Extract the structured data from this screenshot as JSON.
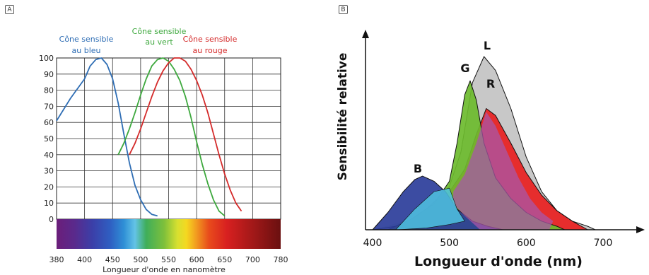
{
  "panel_a_letter": "A",
  "panel_b_letter": "B",
  "chart_data": [
    {
      "type": "line",
      "panel": "A",
      "xlabel": "Longueur d'onde en nanomètre",
      "ylabel": "",
      "x_ticks": [
        380,
        400,
        450,
        500,
        550,
        600,
        650,
        700,
        780
      ],
      "y_ticks": [
        0,
        10,
        20,
        30,
        40,
        50,
        60,
        70,
        80,
        90,
        100
      ],
      "xlim": [
        380,
        780
      ],
      "ylim": [
        0,
        100
      ],
      "grid": true,
      "spectrum_bar": true,
      "series": [
        {
          "name": "Cône sensible au bleu",
          "name_lines": [
            "Cône sensible",
            "au bleu"
          ],
          "color": "#2e6db4",
          "points": [
            [
              380,
              61
            ],
            [
              390,
              75
            ],
            [
              400,
              87
            ],
            [
              410,
              95
            ],
            [
              420,
              99
            ],
            [
              430,
              100
            ],
            [
              440,
              96
            ],
            [
              450,
              87
            ],
            [
              460,
              72
            ],
            [
              470,
              53
            ],
            [
              480,
              35
            ],
            [
              490,
              21
            ],
            [
              500,
              12
            ],
            [
              510,
              6
            ],
            [
              520,
              3
            ],
            [
              530,
              2
            ]
          ]
        },
        {
          "name": "Cône sensible au vert",
          "name_lines": [
            "Cône sensible",
            "au vert"
          ],
          "color": "#3da83d",
          "points": [
            [
              460,
              40
            ],
            [
              470,
              47
            ],
            [
              480,
              56
            ],
            [
              490,
              66
            ],
            [
              500,
              77
            ],
            [
              510,
              87
            ],
            [
              520,
              95
            ],
            [
              530,
              99
            ],
            [
              540,
              100
            ],
            [
              550,
              98
            ],
            [
              560,
              93
            ],
            [
              570,
              86
            ],
            [
              580,
              76
            ],
            [
              590,
              63
            ],
            [
              600,
              48
            ],
            [
              610,
              34
            ],
            [
              620,
              22
            ],
            [
              630,
              12
            ],
            [
              640,
              5
            ],
            [
              650,
              2
            ]
          ]
        },
        {
          "name": "Cône sensible au rouge",
          "name_lines": [
            "Cône sensible",
            "au rouge"
          ],
          "color": "#d42a2a",
          "points": [
            [
              480,
              40
            ],
            [
              490,
              47
            ],
            [
              500,
              56
            ],
            [
              510,
              66
            ],
            [
              520,
              76
            ],
            [
              530,
              85
            ],
            [
              540,
              92
            ],
            [
              550,
              97
            ],
            [
              560,
              100
            ],
            [
              570,
              100
            ],
            [
              580,
              98
            ],
            [
              590,
              93
            ],
            [
              600,
              86
            ],
            [
              610,
              77
            ],
            [
              620,
              66
            ],
            [
              630,
              53
            ],
            [
              640,
              40
            ],
            [
              650,
              28
            ],
            [
              660,
              18
            ],
            [
              670,
              10
            ],
            [
              680,
              5
            ]
          ]
        }
      ]
    },
    {
      "type": "area",
      "panel": "B",
      "xlabel": "Longueur d'onde (nm)",
      "ylabel": "Sensibilité relative",
      "x_ticks": [
        400,
        500,
        600,
        700
      ],
      "xlim": [
        390,
        780
      ],
      "grid": false,
      "series": [
        {
          "name": "L",
          "color": "#c8c8c8",
          "points": [
            [
              400,
              0
            ],
            [
              430,
              2
            ],
            [
              460,
              8
            ],
            [
              480,
              16
            ],
            [
              500,
              25
            ],
            [
              515,
              45
            ],
            [
              530,
              85
            ],
            [
              545,
              100
            ],
            [
              560,
              92
            ],
            [
              580,
              70
            ],
            [
              600,
              42
            ],
            [
              620,
              22
            ],
            [
              640,
              11
            ],
            [
              660,
              5
            ],
            [
              680,
              2
            ],
            [
              690,
              0
            ]
          ]
        },
        {
          "name": "G",
          "color": "#6dbb2e",
          "points": [
            [
              420,
              0
            ],
            [
              450,
              6
            ],
            [
              480,
              15
            ],
            [
              500,
              28
            ],
            [
              510,
              50
            ],
            [
              520,
              78
            ],
            [
              527,
              86
            ],
            [
              535,
              75
            ],
            [
              545,
              50
            ],
            [
              560,
              30
            ],
            [
              580,
              18
            ],
            [
              600,
              10
            ],
            [
              620,
              5
            ],
            [
              640,
              2
            ],
            [
              650,
              0
            ]
          ]
        },
        {
          "name": "R",
          "color": "#e82020",
          "points": [
            [
              430,
              0
            ],
            [
              470,
              10
            ],
            [
              500,
              22
            ],
            [
              520,
              35
            ],
            [
              535,
              55
            ],
            [
              548,
              70
            ],
            [
              560,
              66
            ],
            [
              580,
              50
            ],
            [
              600,
              33
            ],
            [
              620,
              20
            ],
            [
              640,
              11
            ],
            [
              660,
              5
            ],
            [
              680,
              0
            ]
          ]
        },
        {
          "name": "B",
          "color": "#2b3d9a",
          "points": [
            [
              400,
              0
            ],
            [
              420,
              10
            ],
            [
              440,
              22
            ],
            [
              455,
              29
            ],
            [
              465,
              31
            ],
            [
              480,
              28
            ],
            [
              495,
              22
            ],
            [
              510,
              12
            ],
            [
              530,
              5
            ],
            [
              550,
              2
            ],
            [
              570,
              0
            ]
          ]
        }
      ]
    }
  ]
}
